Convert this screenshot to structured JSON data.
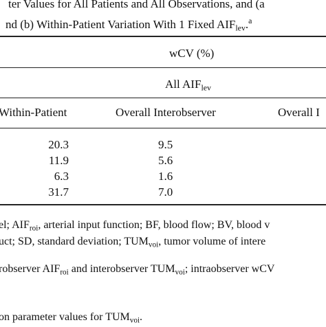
{
  "caption": {
    "line1": "ter Values for All Patients and All Observations, and (a",
    "line2_prefix": "nd (b) Within-Patient Variation With 1 Fixed AIF",
    "line2_sub": "lev",
    "line2_suffix": ".",
    "line2_sup": "a"
  },
  "table": {
    "group_header": "wCV (%)",
    "sub_header_prefix": "All AIF",
    "sub_header_sub": "lev",
    "columns": [
      "Within-Patient",
      "Overall Interobserver",
      "Overall I"
    ],
    "rows": [
      [
        "20.3",
        "9.5"
      ],
      [
        "11.9",
        "5.6"
      ],
      [
        "6.3",
        "1.6"
      ],
      [
        "31.7",
        "7.0"
      ]
    ]
  },
  "footnotes": {
    "line1_a": "el; AIF",
    "line1_a_sub": "roi",
    "line1_b": ", arterial input function; BF, blood flow; BV, blood v",
    "line2_a": "uct; SD, standard deviation; TUM",
    "line2_a_sub": "voi",
    "line2_b": ", tumor volume of intere",
    "line3_a": "robserver AIF",
    "line3_a_sub": "roi",
    "line3_b": " and interobserver TUM",
    "line3_b_sub": "voi",
    "line3_c": "; intraobserver wCV",
    "line4_a": "on parameter values for TUM",
    "line4_a_sub": "voi",
    "line4_b": "."
  }
}
